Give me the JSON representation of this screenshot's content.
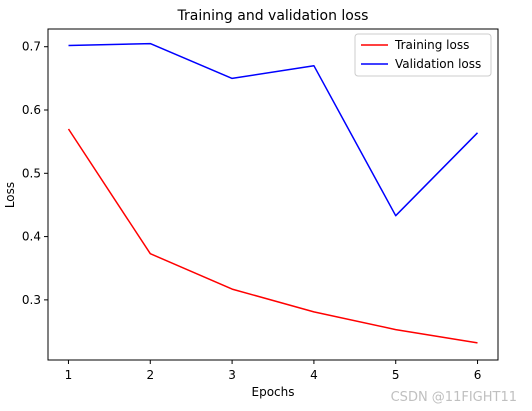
{
  "chart_data": {
    "type": "line",
    "title": "Training and validation loss",
    "xlabel": "Epochs",
    "ylabel": "Loss",
    "x": [
      1,
      2,
      3,
      4,
      5,
      6
    ],
    "xlim": [
      0.75,
      6.25
    ],
    "ylim": [
      0.205,
      0.728
    ],
    "xticks": [
      "1",
      "2",
      "3",
      "4",
      "5",
      "6"
    ],
    "yticks": [
      "0.3",
      "0.4",
      "0.5",
      "0.6",
      "0.7"
    ],
    "ytick_values": [
      0.3,
      0.4,
      0.5,
      0.6,
      0.7
    ],
    "grid": false,
    "legend_position": "top-right",
    "series": [
      {
        "name": "Training loss",
        "color": "#ff0000",
        "values": [
          0.57,
          0.373,
          0.317,
          0.281,
          0.253,
          0.232
        ]
      },
      {
        "name": "Validation loss",
        "color": "#0000ff",
        "values": [
          0.702,
          0.705,
          0.65,
          0.67,
          0.433,
          0.564
        ]
      }
    ]
  },
  "watermark": "CSDN @11FIGHT11"
}
